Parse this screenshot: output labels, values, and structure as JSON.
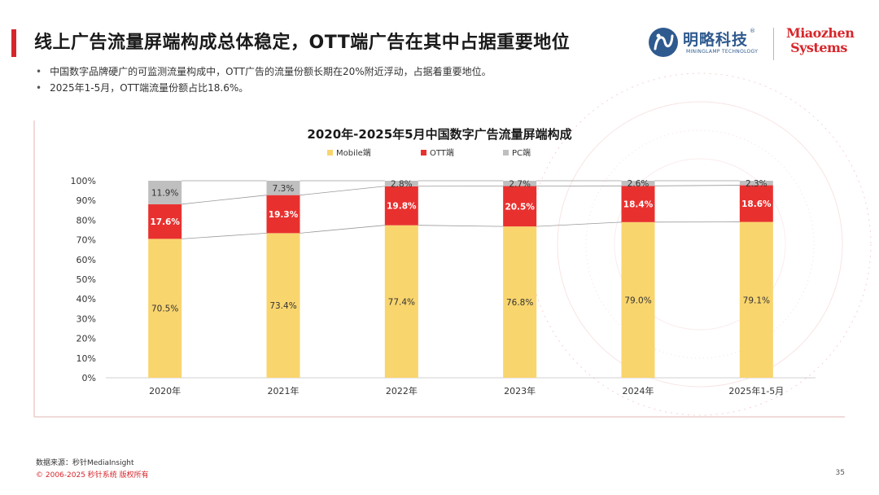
{
  "header": {
    "title": "线上广告流量屏端构成总体稳定，OTT端广告在其中占据重要地位",
    "bullets": [
      "中国数字品牌硬广的可监测流量构成中，OTT广告的流量份额长期在20%附近浮动，占据着重要地位。",
      "2025年1-5月，OTT端流量份额占比18.6%。"
    ]
  },
  "logos": {
    "minglue_name": "明略科技",
    "minglue_sub": "MININGLAMP TECHNOLOGY",
    "minglue_reg": "®",
    "miaozhen_line1": "Miaozhen",
    "miaozhen_line2": "Systems"
  },
  "colors": {
    "accent_red": "#d6262b",
    "mobile": "#f9d56e",
    "ott": "#e8312f",
    "pc": "#bfbfbf",
    "connector": "#9a9a9a"
  },
  "chart_data": {
    "type": "bar",
    "stacked": true,
    "title": "2020年-2025年5月中国数字广告流量屏端构成",
    "categories": [
      "2020年",
      "2021年",
      "2022年",
      "2023年",
      "2024年",
      "2025年1-5月"
    ],
    "series": [
      {
        "name": "Mobile端",
        "values": [
          70.5,
          73.4,
          77.4,
          76.8,
          79.0,
          79.1
        ],
        "labels": [
          "70.5%",
          "73.4%",
          "77.4%",
          "76.8%",
          "79.0%",
          "79.1%"
        ]
      },
      {
        "name": "OTT端",
        "values": [
          17.6,
          19.3,
          19.8,
          20.5,
          18.4,
          18.6
        ],
        "labels": [
          "17.6%",
          "19.3%",
          "19.8%",
          "20.5%",
          "18.4%",
          "18.6%"
        ]
      },
      {
        "name": "PC端",
        "values": [
          11.9,
          7.3,
          2.8,
          2.7,
          2.6,
          2.3
        ],
        "labels": [
          "11.9%",
          "7.3%",
          "2.8%",
          "2.7%",
          "2.6%",
          "2.3%"
        ]
      }
    ],
    "ylim": [
      0,
      100
    ],
    "yticks": [
      "0%",
      "10%",
      "20%",
      "30%",
      "40%",
      "50%",
      "60%",
      "70%",
      "80%",
      "90%",
      "100%"
    ],
    "xlabel": "",
    "ylabel": "",
    "legend": "top-center",
    "grid": false
  },
  "footer": {
    "source": "数据来源：秒针MediaInsight",
    "copyright": "© 2006-2025 秒针系统 版权所有",
    "page_number": "35"
  }
}
